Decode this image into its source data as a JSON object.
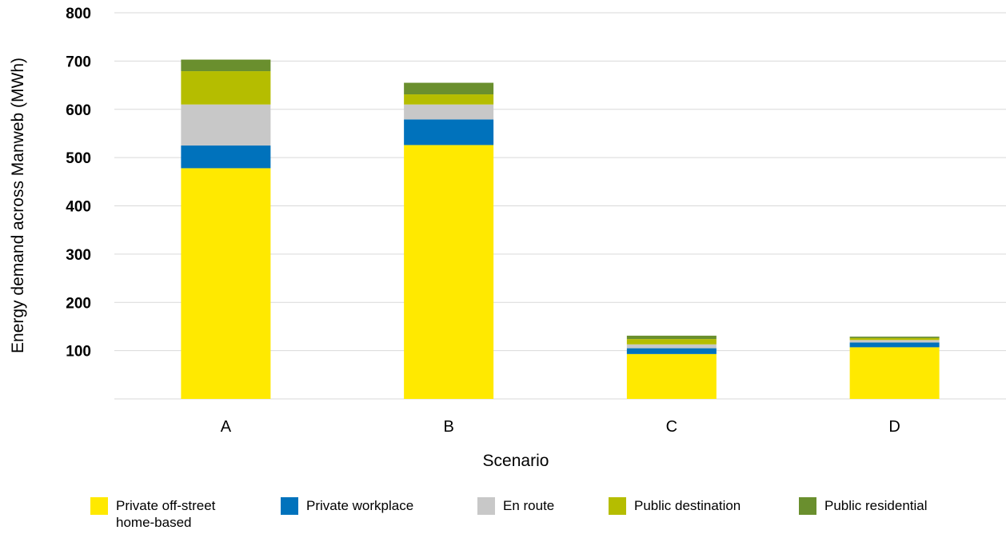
{
  "chart_data": {
    "type": "bar",
    "stacked": true,
    "title": "",
    "xlabel": "Scenario",
    "ylabel": "Energy demand across Manweb (MWh)",
    "categories": [
      "A",
      "B",
      "C",
      "D"
    ],
    "ylim": [
      0,
      800
    ],
    "yticks": [
      100,
      200,
      300,
      400,
      500,
      600,
      700,
      800
    ],
    "grid": true,
    "legend_position": "bottom",
    "series": [
      {
        "name": "Private off-street\nhome-based",
        "color": "#FFE900",
        "values": [
          478,
          526,
          93,
          107
        ]
      },
      {
        "name": "Private workplace",
        "color": "#0072BC",
        "values": [
          47,
          53,
          12,
          10
        ]
      },
      {
        "name": "En route",
        "color": "#C8C8C8",
        "values": [
          85,
          31,
          8,
          5
        ]
      },
      {
        "name": "Public destination",
        "color": "#B5BD00",
        "values": [
          69,
          21,
          11,
          4
        ]
      },
      {
        "name": "Public residential",
        "color": "#6A8F2E",
        "values": [
          24,
          24,
          7,
          3
        ]
      }
    ]
  }
}
